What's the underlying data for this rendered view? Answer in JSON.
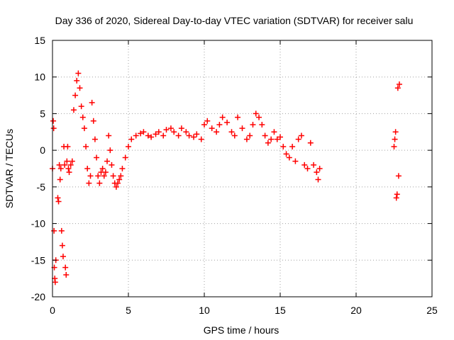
{
  "chart_data": {
    "type": "scatter",
    "title": "Day 336 of 2020, Sidereal Day-to-day VTEC variation (SDTVAR) for receiver salu",
    "xlabel": "GPS time / hours",
    "ylabel": "SDTVAR / TECUs",
    "xlim": [
      0,
      25
    ],
    "ylim": [
      -20,
      15
    ],
    "xticks": [
      0,
      5,
      10,
      15,
      20,
      25
    ],
    "xtick_labels": [
      "0",
      "5",
      "10",
      "15",
      "20",
      "25"
    ],
    "yticks": [
      -20,
      -15,
      -10,
      -5,
      0,
      5,
      10,
      15
    ],
    "ytick_labels": [
      "-20",
      "-15",
      "-10",
      "-5",
      "0",
      "5",
      "10",
      "15"
    ],
    "grid": true,
    "marker": "+",
    "color": "#ff0000",
    "series": [
      {
        "name": "SDTVAR",
        "points": [
          [
            0.0,
            -2.5
          ],
          [
            0.05,
            4.0
          ],
          [
            0.08,
            3.0
          ],
          [
            0.1,
            -11.0
          ],
          [
            0.12,
            -16.0
          ],
          [
            0.15,
            -17.5
          ],
          [
            0.18,
            -18.0
          ],
          [
            0.22,
            -15.0
          ],
          [
            0.35,
            -6.5
          ],
          [
            0.4,
            -7.0
          ],
          [
            0.45,
            -2.0
          ],
          [
            0.5,
            -4.0
          ],
          [
            0.55,
            -2.5
          ],
          [
            0.6,
            -11.0
          ],
          [
            0.65,
            -13.0
          ],
          [
            0.7,
            -14.5
          ],
          [
            0.75,
            0.5
          ],
          [
            0.8,
            -2.0
          ],
          [
            0.85,
            -16.0
          ],
          [
            0.9,
            -17.0
          ],
          [
            0.95,
            -1.5
          ],
          [
            1.0,
            0.5
          ],
          [
            1.05,
            -2.5
          ],
          [
            1.1,
            -3.0
          ],
          [
            1.2,
            -2.0
          ],
          [
            1.3,
            -1.5
          ],
          [
            1.4,
            5.5
          ],
          [
            1.5,
            7.5
          ],
          [
            1.6,
            9.5
          ],
          [
            1.7,
            10.5
          ],
          [
            1.8,
            8.5
          ],
          [
            1.9,
            6.0
          ],
          [
            2.0,
            4.5
          ],
          [
            2.1,
            3.0
          ],
          [
            2.2,
            0.5
          ],
          [
            2.3,
            -2.5
          ],
          [
            2.4,
            -4.5
          ],
          [
            2.5,
            -3.5
          ],
          [
            2.6,
            6.5
          ],
          [
            2.7,
            4.0
          ],
          [
            2.8,
            1.5
          ],
          [
            2.9,
            -1.0
          ],
          [
            3.0,
            -3.5
          ],
          [
            3.1,
            -4.5
          ],
          [
            3.2,
            -3.0
          ],
          [
            3.3,
            -2.5
          ],
          [
            3.4,
            -3.5
          ],
          [
            3.5,
            -3.0
          ],
          [
            3.6,
            -1.5
          ],
          [
            3.7,
            2.0
          ],
          [
            3.8,
            0.0
          ],
          [
            3.9,
            -2.0
          ],
          [
            4.0,
            -3.5
          ],
          [
            4.1,
            -4.5
          ],
          [
            4.2,
            -5.0
          ],
          [
            4.3,
            -4.5
          ],
          [
            4.4,
            -4.0
          ],
          [
            4.5,
            -3.5
          ],
          [
            4.6,
            -2.5
          ],
          [
            4.8,
            -1.0
          ],
          [
            5.0,
            0.5
          ],
          [
            5.2,
            1.5
          ],
          [
            5.5,
            2.0
          ],
          [
            5.8,
            2.3
          ],
          [
            6.0,
            2.5
          ],
          [
            6.3,
            2.0
          ],
          [
            6.5,
            1.8
          ],
          [
            6.8,
            2.2
          ],
          [
            7.0,
            2.5
          ],
          [
            7.3,
            2.0
          ],
          [
            7.5,
            2.8
          ],
          [
            7.8,
            3.0
          ],
          [
            8.0,
            2.5
          ],
          [
            8.3,
            2.0
          ],
          [
            8.5,
            3.0
          ],
          [
            8.8,
            2.5
          ],
          [
            9.0,
            2.0
          ],
          [
            9.3,
            1.8
          ],
          [
            9.5,
            2.2
          ],
          [
            9.8,
            1.5
          ],
          [
            10.0,
            3.5
          ],
          [
            10.2,
            4.0
          ],
          [
            10.5,
            3.0
          ],
          [
            10.8,
            2.5
          ],
          [
            11.0,
            3.5
          ],
          [
            11.2,
            4.5
          ],
          [
            11.5,
            3.8
          ],
          [
            11.8,
            2.5
          ],
          [
            12.0,
            2.0
          ],
          [
            12.2,
            4.5
          ],
          [
            12.5,
            3.0
          ],
          [
            12.8,
            1.5
          ],
          [
            13.0,
            2.0
          ],
          [
            13.2,
            3.5
          ],
          [
            13.4,
            5.0
          ],
          [
            13.6,
            4.5
          ],
          [
            13.8,
            3.5
          ],
          [
            14.0,
            2.0
          ],
          [
            14.2,
            1.0
          ],
          [
            14.4,
            1.5
          ],
          [
            14.6,
            2.5
          ],
          [
            14.8,
            1.5
          ],
          [
            15.0,
            1.8
          ],
          [
            15.2,
            0.5
          ],
          [
            15.4,
            -0.5
          ],
          [
            15.6,
            -1.0
          ],
          [
            15.8,
            0.5
          ],
          [
            16.0,
            -1.5
          ],
          [
            16.2,
            1.5
          ],
          [
            16.4,
            2.0
          ],
          [
            16.6,
            -2.0
          ],
          [
            16.8,
            -2.5
          ],
          [
            17.0,
            1.0
          ],
          [
            17.2,
            -2.0
          ],
          [
            17.4,
            -3.0
          ],
          [
            17.5,
            -4.0
          ],
          [
            17.6,
            -2.5
          ],
          [
            22.5,
            0.5
          ],
          [
            22.55,
            1.5
          ],
          [
            22.6,
            2.5
          ],
          [
            22.65,
            -6.5
          ],
          [
            22.7,
            -6.0
          ],
          [
            22.75,
            8.5
          ],
          [
            22.8,
            -3.5
          ],
          [
            22.85,
            9.0
          ]
        ]
      }
    ]
  }
}
